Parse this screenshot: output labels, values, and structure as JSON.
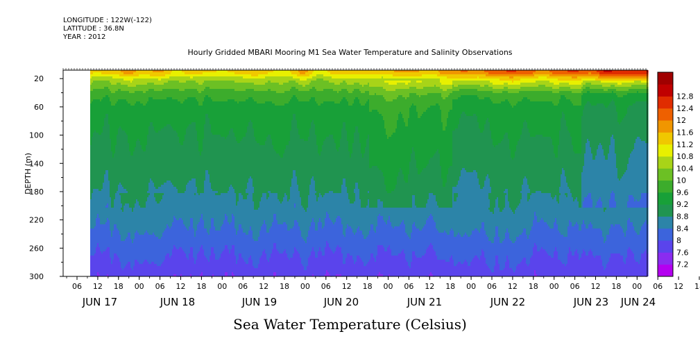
{
  "header": {
    "longitude": "LONGITUDE : 122W(-122)",
    "latitude": "LATITUDE : 36.8N",
    "year": "YEAR : 2012",
    "title": "Hourly Gridded MBARI Mooring M1 Sea Water Temperature and Salinity Observations"
  },
  "footer": {
    "label": "Sea Water Temperature (Celsius)"
  },
  "chart_data": {
    "type": "heatmap",
    "title": "Hourly Gridded MBARI Mooring M1 Sea Water Temperature and Salinity Observations",
    "xlabel": "",
    "ylabel": "DEPTH (m)",
    "colorbar_label": "Sea Water Temperature (Celsius)",
    "y_ticks": [
      20,
      60,
      100,
      140,
      180,
      220,
      260,
      300
    ],
    "ylim": [
      300,
      8
    ],
    "x_hour_labels": [
      "06",
      "12",
      "18",
      "00",
      "06",
      "12",
      "18",
      "00",
      "06",
      "12",
      "18",
      "00",
      "06",
      "12",
      "18",
      "00",
      "06",
      "12",
      "18",
      "00",
      "06",
      "12",
      "18",
      "00",
      "06",
      "12",
      "18",
      "00",
      "06",
      "12",
      "18",
      "00"
    ],
    "x_day_labels": [
      "JUN 17",
      "JUN 18",
      "JUN 19",
      "JUN 20",
      "JUN 21",
      "JUN 22",
      "JUN 23",
      "JUN 24"
    ],
    "colorbar_levels": [
      7.2,
      7.6,
      8,
      8.4,
      8.8,
      9.2,
      9.6,
      10,
      10.4,
      10.8,
      11.2,
      11.6,
      12,
      12.4,
      12.8
    ],
    "colorbar_colors": [
      "#b400f0",
      "#8a2cf0",
      "#5a44ec",
      "#3c64dc",
      "#2c84a8",
      "#209450",
      "#18a038",
      "#3cac2c",
      "#6cc024",
      "#a8d418",
      "#e8f000",
      "#f0c800",
      "#f09600",
      "#ee6000",
      "#e02c00",
      "#c00000",
      "#a00000"
    ],
    "grid": false,
    "data_start": "JUN 17 09:00",
    "data_end": "JUN 24 00:00",
    "depth_profile_typical": [
      {
        "depth": 10,
        "temp": 11.4
      },
      {
        "depth": 20,
        "temp": 10.6
      },
      {
        "depth": 40,
        "temp": 9.8
      },
      {
        "depth": 60,
        "temp": 9.4
      },
      {
        "depth": 100,
        "temp": 9.2
      },
      {
        "depth": 140,
        "temp": 9.0
      },
      {
        "depth": 180,
        "temp": 8.8
      },
      {
        "depth": 220,
        "temp": 8.5
      },
      {
        "depth": 260,
        "temp": 8.1
      },
      {
        "depth": 300,
        "temp": 7.7
      }
    ]
  }
}
